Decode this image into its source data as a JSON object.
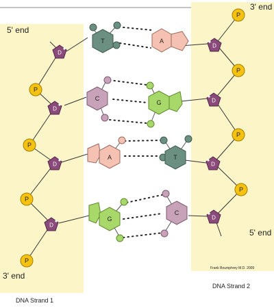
{
  "labels": {
    "strand1_top": "5' end",
    "strand1_bottom": "3' end",
    "strand2_top": "3' end",
    "strand2_bottom": "5' end",
    "strand1_name": "DNA Strand 1",
    "strand2_name": "DNA Strand 2",
    "credit": "Frank Boumphrey M.D. 2009"
  },
  "sugar_label": "D",
  "phosphate_label": "P",
  "base_pairs": [
    {
      "left": "T",
      "right": "A",
      "left_type": "pyrimidine",
      "right_type": "purine",
      "hydrogen_bonds": 2
    },
    {
      "left": "C",
      "right": "G",
      "left_type": "pyrimidine",
      "right_type": "purine",
      "hydrogen_bonds": 3
    },
    {
      "left": "A",
      "right": "T",
      "left_type": "purine",
      "right_type": "pyrimidine",
      "hydrogen_bonds": 2
    },
    {
      "left": "G",
      "right": "C",
      "left_type": "purine",
      "right_type": "pyrimidine",
      "hydrogen_bonds": 3
    }
  ],
  "colors": {
    "strand_band": "#fbf5c8",
    "sugar": "#8a4a7a",
    "phosphate": "#f5c211",
    "thymine": "#6b8f80",
    "adenine": "#f4c1b2",
    "cytosine": "#c8a2b8",
    "guanine": "#a8d86a"
  }
}
